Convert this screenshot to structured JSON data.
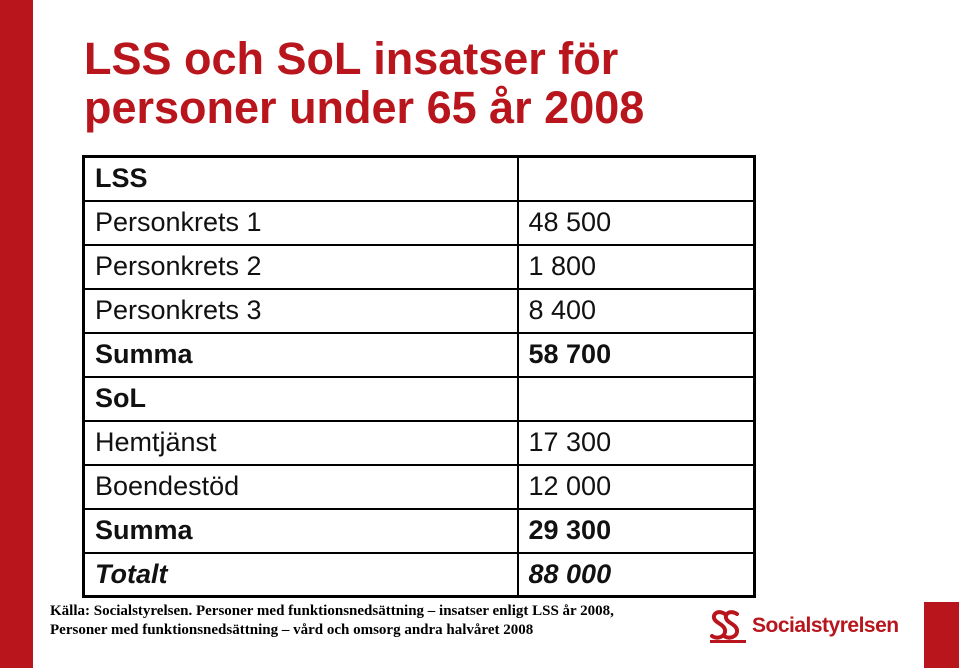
{
  "title": {
    "line1": "LSS och SoL insatser för",
    "line2": "personer under 65 år 2008"
  },
  "table": {
    "rows": [
      {
        "label": "LSS",
        "value": ""
      },
      {
        "label": "Personkrets 1",
        "value": "48 500"
      },
      {
        "label": "Personkrets 2",
        "value": "1 800"
      },
      {
        "label": "Personkrets 3",
        "value": "8 400"
      },
      {
        "label": "Summa",
        "value": "58 700"
      },
      {
        "label": "SoL",
        "value": ""
      },
      {
        "label": "Hemtjänst",
        "value": "17 300"
      },
      {
        "label": "Boendestöd",
        "value": "12 000"
      },
      {
        "label": "Summa",
        "value": "29 300"
      },
      {
        "label": "Totalt",
        "value": "88 000"
      }
    ]
  },
  "source": {
    "line1": "Källa: Socialstyrelsen. Personer med funktionsnedsättning – insatser enligt LSS år 2008,",
    "line2": "Personer med funktionsnedsättning – vård och omsorg andra halvåret 2008"
  },
  "logo": {
    "text": "Socialstyrelsen",
    "icon": "socialstyrelsen-logo-icon",
    "color": "#b8161c"
  },
  "colors": {
    "accent": "#b8161c",
    "text": "#111111"
  }
}
